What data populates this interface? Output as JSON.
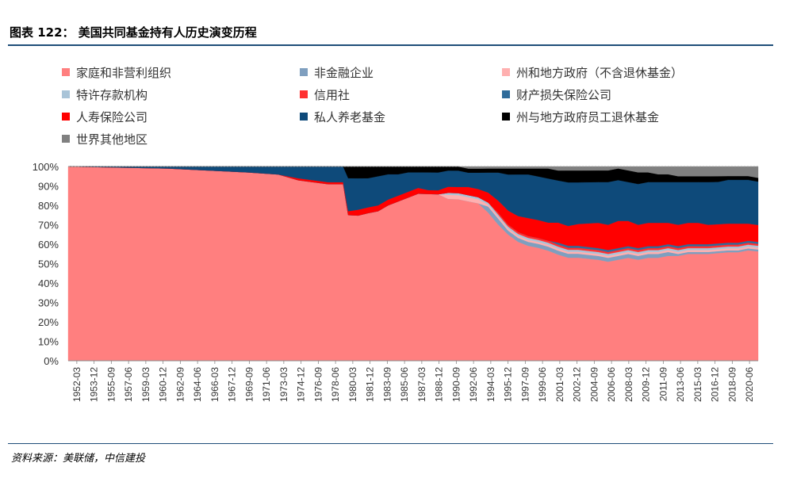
{
  "figure": {
    "title": "图表 122：  美国共同基金持有人历史演变历程",
    "source": "资料来源：美联储，中信建投"
  },
  "chart_data": {
    "type": "area",
    "stacking": "percent",
    "title": "",
    "xlabel": "",
    "ylabel": "",
    "ylim": [
      0,
      100
    ],
    "y_ticks": [
      "0%",
      "10%",
      "20%",
      "30%",
      "40%",
      "50%",
      "60%",
      "70%",
      "80%",
      "90%",
      "100%"
    ],
    "x_tick_labels": [
      "1952-03",
      "1953-12",
      "1955-09",
      "1957-06",
      "1959-03",
      "1960-12",
      "1962-09",
      "1964-06",
      "1966-03",
      "1967-12",
      "1969-09",
      "1971-06",
      "1973-03",
      "1974-12",
      "1976-09",
      "1978-06",
      "1980-03",
      "1981-12",
      "1983-09",
      "1985-06",
      "1987-03",
      "1988-12",
      "1990-09",
      "1992-06",
      "1994-03",
      "1995-12",
      "1997-09",
      "1999-06",
      "2001-03",
      "2002-12",
      "2004-09",
      "2006-06",
      "2008-03",
      "2009-12",
      "2011-09",
      "2013-06",
      "2015-03",
      "2016-12",
      "2018-09",
      "2020-06"
    ],
    "legend_position": "top",
    "x": [
      1952.0,
      1962.0,
      1966.0,
      1970.0,
      1973.0,
      1975.0,
      1978.0,
      1979.5,
      1980.0,
      1981.0,
      1982.0,
      1983.0,
      1984.0,
      1985.0,
      1986.0,
      1987.0,
      1988.0,
      1989.0,
      1990.0,
      1991.0,
      1992.0,
      1993.0,
      1994.0,
      1995.0,
      1996.0,
      1997.0,
      1998.0,
      1999.0,
      2000.0,
      2001.0,
      2002.0,
      2003.0,
      2004.0,
      2005.0,
      2006.0,
      2007.0,
      2008.0,
      2009.0,
      2010.0,
      2011.0,
      2012.0,
      2013.0,
      2014.0,
      2015.0,
      2016.0,
      2017.0,
      2018.0,
      2019.0,
      2020.0,
      2021.0
    ],
    "series": [
      {
        "name": "家庭和非营利组织",
        "color": "#ff7f7f",
        "values": [
          100,
          98,
          97,
          96,
          94,
          92,
          90,
          90,
          75,
          74,
          76,
          77,
          80,
          82,
          84,
          86,
          85,
          84,
          80,
          79,
          78,
          77,
          74,
          68,
          63,
          60,
          58,
          57,
          55,
          53,
          52,
          52,
          52,
          52,
          51,
          52,
          53,
          52,
          53,
          53,
          54,
          54,
          55,
          55,
          55,
          56,
          57,
          57,
          58,
          58
        ]
      },
      {
        "name": "非金融企业",
        "color": "#7f9fbf",
        "values": [
          0,
          0,
          0,
          0,
          0,
          0,
          0,
          0,
          0,
          0,
          0,
          0,
          0,
          0,
          0,
          0,
          0,
          0,
          0,
          0,
          0,
          0,
          3,
          3,
          2,
          2,
          2,
          2,
          2,
          2,
          2,
          2,
          2,
          2,
          2,
          2,
          2,
          2,
          2,
          2,
          2,
          1,
          1,
          1,
          1,
          1,
          1,
          1,
          1,
          1
        ]
      },
      {
        "name": "州和地方政府（不含退休基金）",
        "color": "#ffb0b0",
        "values": [
          0,
          0,
          0,
          0,
          0,
          0,
          0,
          0,
          0,
          0,
          0,
          0,
          0,
          0,
          0,
          0,
          0,
          0,
          2,
          2,
          2,
          2,
          1,
          1,
          1,
          1,
          1,
          1,
          1,
          1,
          1,
          1,
          1,
          1,
          1,
          1,
          1,
          1,
          1,
          1,
          1,
          1,
          1,
          1,
          1,
          1,
          1,
          1,
          1,
          1
        ]
      },
      {
        "name": "特许存款机构",
        "color": "#a9c4d8",
        "values": [
          0,
          0,
          0,
          0,
          0,
          0,
          0,
          0,
          0,
          0,
          0,
          0,
          0,
          0,
          0,
          0,
          0,
          0,
          1,
          1,
          1,
          1,
          1,
          1,
          1,
          1,
          1,
          1,
          1,
          1,
          1,
          1,
          1,
          1,
          1,
          1,
          1,
          1,
          1,
          1,
          1,
          1,
          1,
          1,
          1,
          1,
          1,
          1,
          1,
          1
        ]
      },
      {
        "name": "信用社",
        "color": "#ff3030",
        "values": [
          0,
          0,
          0,
          0,
          0,
          0,
          0,
          0,
          0,
          0,
          0,
          0,
          0,
          0,
          0,
          0,
          0,
          0,
          0,
          0,
          0,
          0,
          0,
          1,
          1,
          1,
          1,
          1,
          1,
          1,
          1,
          1,
          1,
          1,
          1,
          1,
          1,
          1,
          1,
          1,
          1,
          1,
          1,
          1,
          1,
          1,
          1,
          1,
          1,
          1
        ]
      },
      {
        "name": "财产损失保险公司",
        "color": "#2e6b9a",
        "values": [
          0,
          0,
          0,
          0,
          0,
          0,
          0,
          0,
          0,
          0,
          0,
          0,
          0,
          0,
          0,
          0,
          0,
          0,
          0,
          0,
          0,
          0,
          0,
          0,
          0,
          0,
          0,
          0,
          0,
          1,
          1,
          1,
          1,
          1,
          1,
          1,
          1,
          1,
          1,
          1,
          1,
          1,
          1,
          1,
          1,
          1,
          1,
          1,
          1,
          1
        ]
      },
      {
        "name": "人寿保险公司",
        "color": "#ff0000",
        "values": [
          0,
          0,
          0,
          0,
          0,
          1,
          1,
          1,
          2,
          3,
          3,
          3,
          3,
          3,
          3,
          3,
          2,
          2,
          3,
          3,
          4,
          4,
          5,
          6,
          7,
          8,
          9,
          9,
          9,
          10,
          10,
          11,
          12,
          13,
          13,
          14,
          13,
          12,
          12,
          12,
          11,
          11,
          11,
          11,
          10,
          10,
          10,
          10,
          9,
          9
        ]
      },
      {
        "name": "私人养老基金",
        "color": "#0e4a7a",
        "values": [
          0,
          1,
          2,
          3,
          4,
          6,
          8,
          8,
          17,
          16,
          15,
          15,
          13,
          11,
          10,
          8,
          9,
          9,
          8,
          8,
          7,
          8,
          10,
          14,
          18,
          21,
          22,
          22,
          22,
          21,
          22,
          21,
          21,
          21,
          22,
          21,
          20,
          21,
          21,
          21,
          21,
          22,
          21,
          21,
          22,
          22,
          23,
          23,
          23,
          23
        ]
      },
      {
        "name": "州与地方政府员工退休基金",
        "color": "#000000",
        "values": [
          0,
          0,
          0,
          0,
          0,
          0,
          0,
          0,
          6,
          6,
          6,
          5,
          4,
          4,
          3,
          3,
          3,
          3,
          2,
          2,
          2,
          2,
          2,
          2,
          3,
          3,
          3,
          4,
          5,
          5,
          6,
          6,
          6,
          6,
          6,
          6,
          6,
          6,
          5,
          4,
          4,
          3,
          3,
          3,
          3,
          3,
          2,
          2,
          2,
          2
        ]
      },
      {
        "name": "世界其他地区",
        "color": "#808080",
        "values": [
          0,
          0,
          0,
          0,
          0,
          0,
          0,
          0,
          0,
          0,
          0,
          0,
          0,
          0,
          0,
          0,
          0,
          0,
          0,
          0,
          1,
          1,
          1,
          1,
          1,
          1,
          1,
          1,
          1,
          2,
          2,
          2,
          2,
          2,
          2,
          1,
          2,
          3,
          3,
          4,
          4,
          5,
          5,
          5,
          5,
          5,
          5,
          5,
          5,
          6
        ]
      }
    ]
  }
}
